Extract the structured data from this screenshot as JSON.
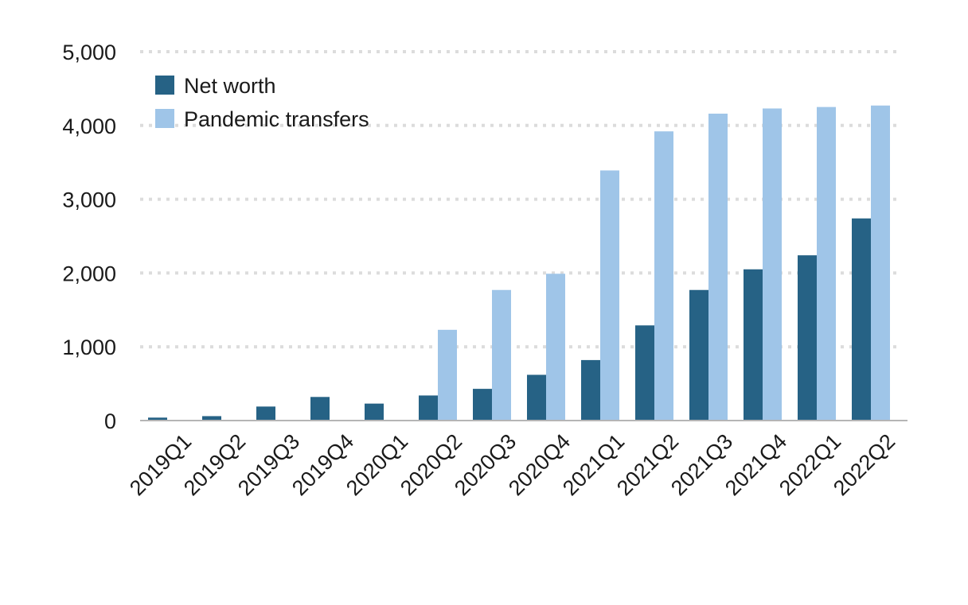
{
  "chart_data": {
    "type": "bar",
    "categories": [
      "2019Q1",
      "2019Q2",
      "2019Q3",
      "2019Q4",
      "2020Q1",
      "2020Q2",
      "2020Q3",
      "2020Q4",
      "2021Q1",
      "2021Q2",
      "2021Q3",
      "2021Q4",
      "2022Q1",
      "2022Q2"
    ],
    "series": [
      {
        "name": "Net worth",
        "color": "#266285",
        "values": [
          40,
          60,
          190,
          320,
          230,
          340,
          430,
          620,
          820,
          1290,
          1770,
          2050,
          2240,
          2740
        ]
      },
      {
        "name": "Pandemic transfers",
        "color": "#9fc5e8",
        "values": [
          0,
          0,
          0,
          0,
          0,
          1230,
          1770,
          1990,
          3390,
          3920,
          4160,
          4230,
          4250,
          4270
        ]
      }
    ],
    "ylim": [
      0,
      5000
    ],
    "yticks": [
      0,
      1000,
      2000,
      3000,
      4000,
      5000
    ],
    "ytick_labels": [
      "0",
      "1,000",
      "2,000",
      "3,000",
      "4,000",
      "5,000"
    ],
    "grid": "horizontal-dotted",
    "legend_position": "top-left"
  }
}
